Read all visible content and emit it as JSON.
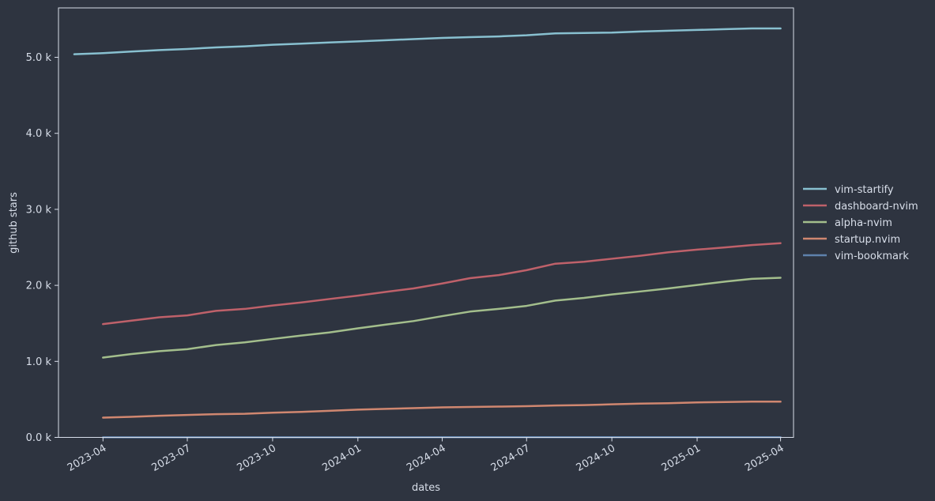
{
  "chart_data": {
    "type": "line",
    "xlabel": "dates",
    "ylabel": "github stars",
    "ylim": [
      0,
      5650
    ],
    "y_ticks": [
      0,
      1000,
      2000,
      3000,
      4000,
      5000
    ],
    "y_tick_labels": [
      "0.0 k",
      "1.0 k",
      "2.0 k",
      "3.0 k",
      "4.0 k",
      "5.0 k"
    ],
    "x_ticks": [
      "2023-04-01",
      "2023-07-01",
      "2023-10-01",
      "2024-01-01",
      "2024-04-01",
      "2024-07-01",
      "2024-10-01",
      "2025-01-01",
      "2025-04-01"
    ],
    "x_tick_labels": [
      "2023-04",
      "2023-07",
      "2023-10",
      "2024-01",
      "2024-04",
      "2024-07",
      "2024-10",
      "2025-01",
      "2025-04"
    ],
    "xlim": [
      "2023-02-12",
      "2025-04-15"
    ],
    "grid": false,
    "legend_position": "right",
    "series": [
      {
        "name": "vim-startify",
        "color": "#88c0d0",
        "x": [
          "2023-03-01",
          "2023-04-01",
          "2023-05-01",
          "2023-06-01",
          "2023-07-01",
          "2023-08-01",
          "2023-09-01",
          "2023-10-01",
          "2023-11-01",
          "2023-12-01",
          "2024-01-01",
          "2024-02-01",
          "2024-03-01",
          "2024-04-01",
          "2024-05-01",
          "2024-06-01",
          "2024-07-01",
          "2024-08-01",
          "2024-09-01",
          "2024-10-01",
          "2024-11-01",
          "2024-12-01",
          "2025-01-01",
          "2025-02-01",
          "2025-03-01",
          "2025-04-01"
        ],
        "values": [
          5040,
          5055,
          5075,
          5095,
          5110,
          5130,
          5145,
          5165,
          5180,
          5195,
          5210,
          5225,
          5240,
          5255,
          5265,
          5275,
          5290,
          5315,
          5320,
          5325,
          5340,
          5350,
          5360,
          5370,
          5380,
          5380
        ]
      },
      {
        "name": "dashboard-nvim",
        "color": "#bf616a",
        "x": [
          "2023-04-01",
          "2023-05-01",
          "2023-06-01",
          "2023-07-01",
          "2023-08-01",
          "2023-09-01",
          "2023-10-01",
          "2023-11-01",
          "2023-12-01",
          "2024-01-01",
          "2024-02-01",
          "2024-03-01",
          "2024-04-01",
          "2024-05-01",
          "2024-06-01",
          "2024-07-01",
          "2024-08-01",
          "2024-09-01",
          "2024-10-01",
          "2024-11-01",
          "2024-12-01",
          "2025-01-01",
          "2025-02-01",
          "2025-03-01",
          "2025-04-01"
        ],
        "values": [
          1490,
          1535,
          1580,
          1605,
          1665,
          1690,
          1735,
          1775,
          1820,
          1865,
          1915,
          1960,
          2025,
          2095,
          2135,
          2200,
          2285,
          2310,
          2350,
          2390,
          2435,
          2470,
          2500,
          2530,
          2555
        ]
      },
      {
        "name": "alpha-nvim",
        "color": "#a3be8c",
        "x": [
          "2023-04-01",
          "2023-05-01",
          "2023-06-01",
          "2023-07-01",
          "2023-08-01",
          "2023-09-01",
          "2023-10-01",
          "2023-11-01",
          "2023-12-01",
          "2024-01-01",
          "2024-02-01",
          "2024-03-01",
          "2024-04-01",
          "2024-05-01",
          "2024-06-01",
          "2024-07-01",
          "2024-08-01",
          "2024-09-01",
          "2024-10-01",
          "2024-11-01",
          "2024-12-01",
          "2025-01-01",
          "2025-02-01",
          "2025-03-01",
          "2025-04-01"
        ],
        "values": [
          1050,
          1095,
          1135,
          1160,
          1215,
          1250,
          1295,
          1340,
          1380,
          1435,
          1485,
          1530,
          1595,
          1655,
          1690,
          1730,
          1800,
          1835,
          1880,
          1920,
          1960,
          2005,
          2050,
          2085,
          2100
        ]
      },
      {
        "name": "startup.nvim",
        "color": "#d08770",
        "x": [
          "2023-04-01",
          "2023-05-01",
          "2023-06-01",
          "2023-07-01",
          "2023-08-01",
          "2023-09-01",
          "2023-10-01",
          "2023-11-01",
          "2023-12-01",
          "2024-01-01",
          "2024-02-01",
          "2024-03-01",
          "2024-04-01",
          "2024-05-01",
          "2024-06-01",
          "2024-07-01",
          "2024-08-01",
          "2024-09-01",
          "2024-10-01",
          "2024-11-01",
          "2024-12-01",
          "2025-01-01",
          "2025-02-01",
          "2025-03-01",
          "2025-04-01"
        ],
        "values": [
          260,
          270,
          285,
          295,
          305,
          310,
          325,
          335,
          350,
          365,
          375,
          385,
          395,
          400,
          405,
          410,
          420,
          425,
          435,
          445,
          450,
          460,
          465,
          470,
          470
        ]
      },
      {
        "name": "vim-bookmark",
        "color": "#5e81ac",
        "x": [
          "2023-04-01",
          "2023-07-01",
          "2023-10-01",
          "2024-01-01",
          "2024-04-01",
          "2024-07-01",
          "2024-10-01",
          "2025-01-01",
          "2025-04-01"
        ],
        "values": [
          1,
          1,
          1,
          1,
          2,
          2,
          2,
          2,
          2
        ]
      }
    ]
  }
}
